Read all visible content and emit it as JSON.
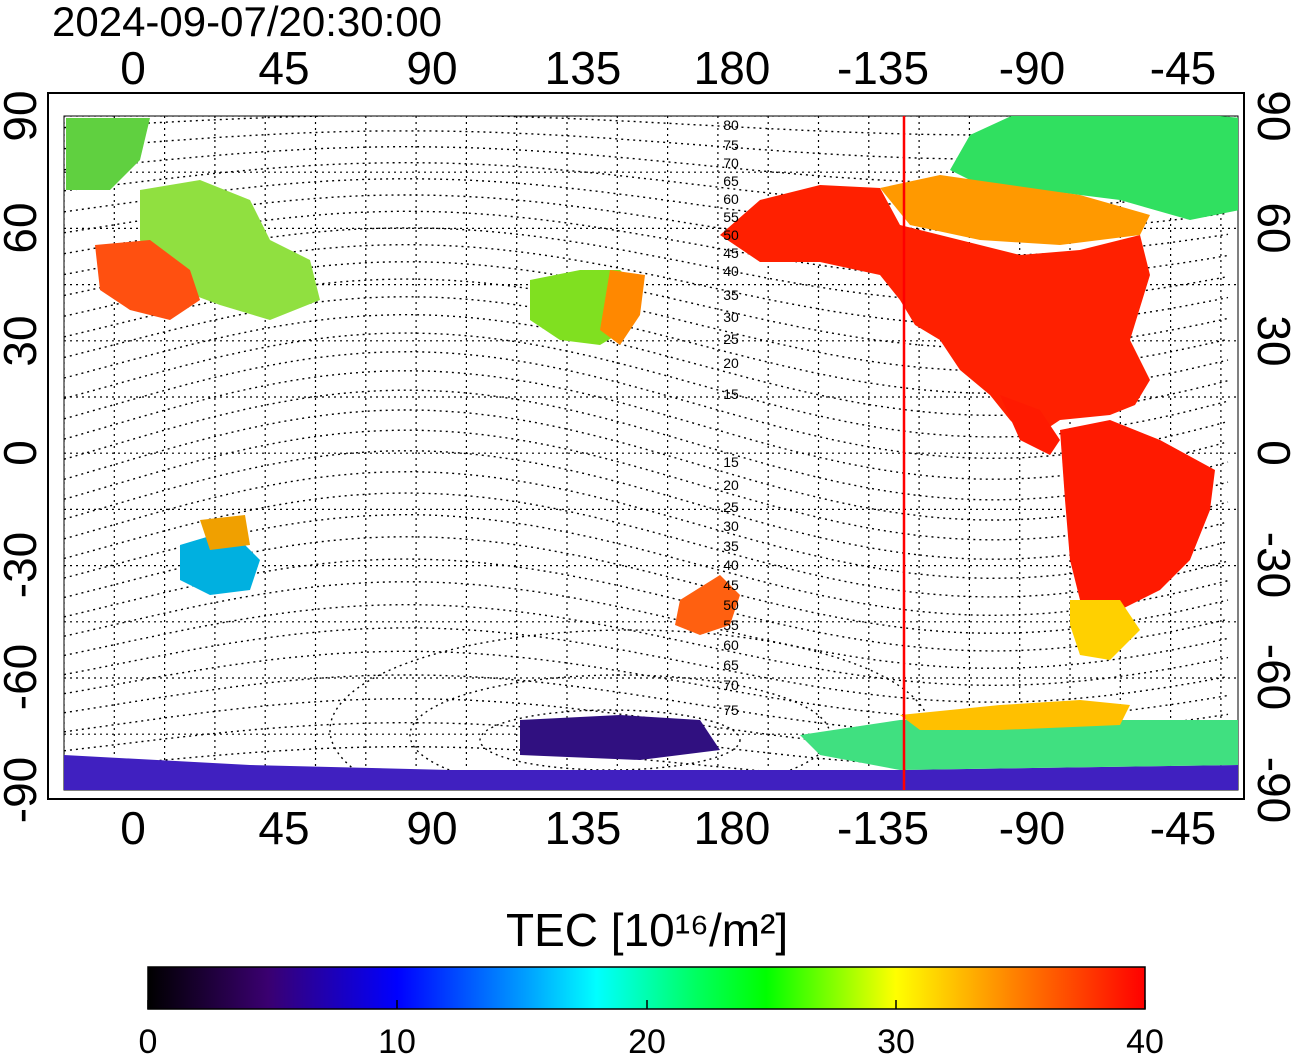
{
  "title": "2024-09-07/20:30:00",
  "map": {
    "top_lon_labels": [
      "0",
      "45",
      "90",
      "135",
      "180",
      "-135",
      "-90",
      "-45"
    ],
    "bottom_lon_labels": [
      "0",
      "45",
      "90",
      "135",
      "180",
      "-135",
      "-90",
      "-45"
    ],
    "left_lat_labels": [
      "90",
      "60",
      "30",
      "0",
      "-30",
      "-60",
      "-90"
    ],
    "right_lat_labels": [
      "90",
      "60",
      "30",
      "0",
      "-30",
      "-60",
      "-90"
    ],
    "contour_labels_north": [
      "80",
      "75",
      "70",
      "65",
      "60",
      "55",
      "50",
      "45",
      "40",
      "35",
      "30",
      "25",
      "20",
      "15"
    ],
    "contour_labels_south": [
      "15",
      "20",
      "25",
      "30",
      "35",
      "40",
      "45",
      "50",
      "55",
      "60",
      "65",
      "70",
      "75"
    ],
    "terminator_color": "#ff0000"
  },
  "colorbar": {
    "label": "TEC  [10¹⁶/m²]",
    "ticks": [
      "0",
      "10",
      "20",
      "30",
      "40"
    ],
    "colors": [
      "#000000",
      "#3a0070",
      "#0000ff",
      "#00ffff",
      "#00ff00",
      "#ffff00",
      "#ff8000",
      "#ff0000"
    ]
  }
}
